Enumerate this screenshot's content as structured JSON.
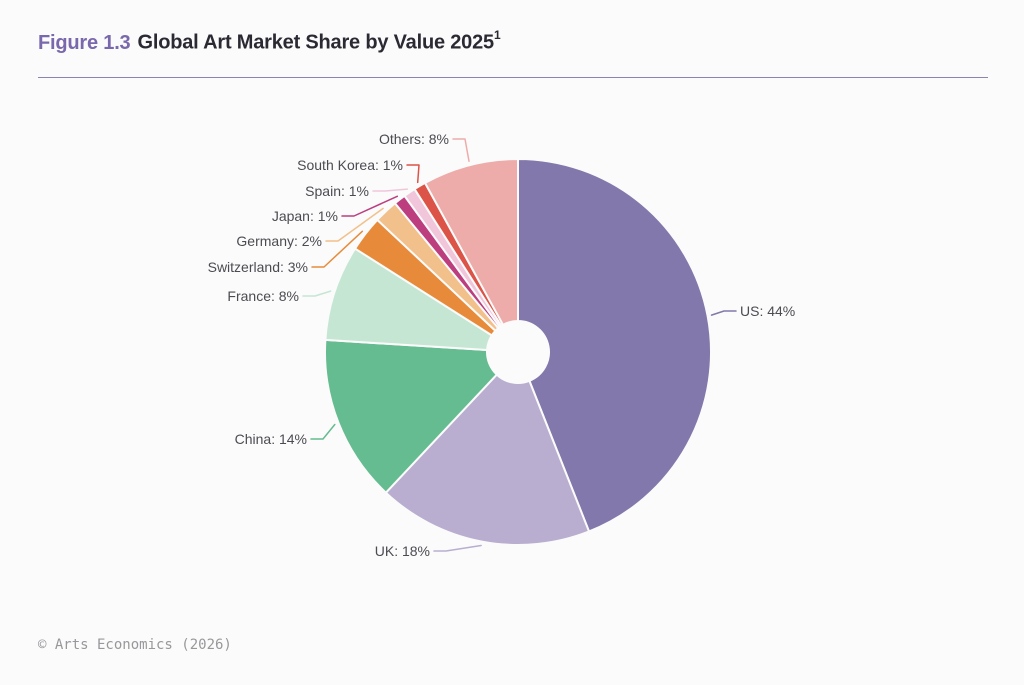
{
  "title": {
    "prefix": "Figure 1.3",
    "text": "Global Art Market Share by Value 2025",
    "superscript": "1"
  },
  "footer": "© Arts Economics (2026)",
  "chart_data": {
    "type": "pie",
    "title": "Global Art Market Share by Value 2025",
    "unit": "%",
    "donut": true,
    "direction": "clockwise",
    "start_angle_deg": 0,
    "categories": [
      "US",
      "UK",
      "China",
      "France",
      "Switzerland",
      "Germany",
      "Japan",
      "Spain",
      "South Korea",
      "Others"
    ],
    "values": [
      44,
      18,
      14,
      8,
      3,
      2,
      1,
      1,
      1,
      8
    ],
    "labels": [
      "US: 44%",
      "UK: 18%",
      "China: 14%",
      "France: 8%",
      "Switzerland: 3%",
      "Germany: 2%",
      "Japan: 1%",
      "Spain: 1%",
      "South Korea: 1%",
      "Others: 8%"
    ],
    "colors": [
      "#8278ab",
      "#b9aed0",
      "#65bc90",
      "#c6e6d4",
      "#e78b3b",
      "#f2c08a",
      "#bc3e7e",
      "#f2c6da",
      "#dc5348",
      "#edacaa"
    ]
  },
  "colors": {
    "background": "#fbfbfb",
    "accent_purple": "#7a68ad",
    "title_text": "#2b2a33",
    "label_text": "#4c4b52",
    "divider": "#8c84ae",
    "footer_text": "#98989c"
  }
}
